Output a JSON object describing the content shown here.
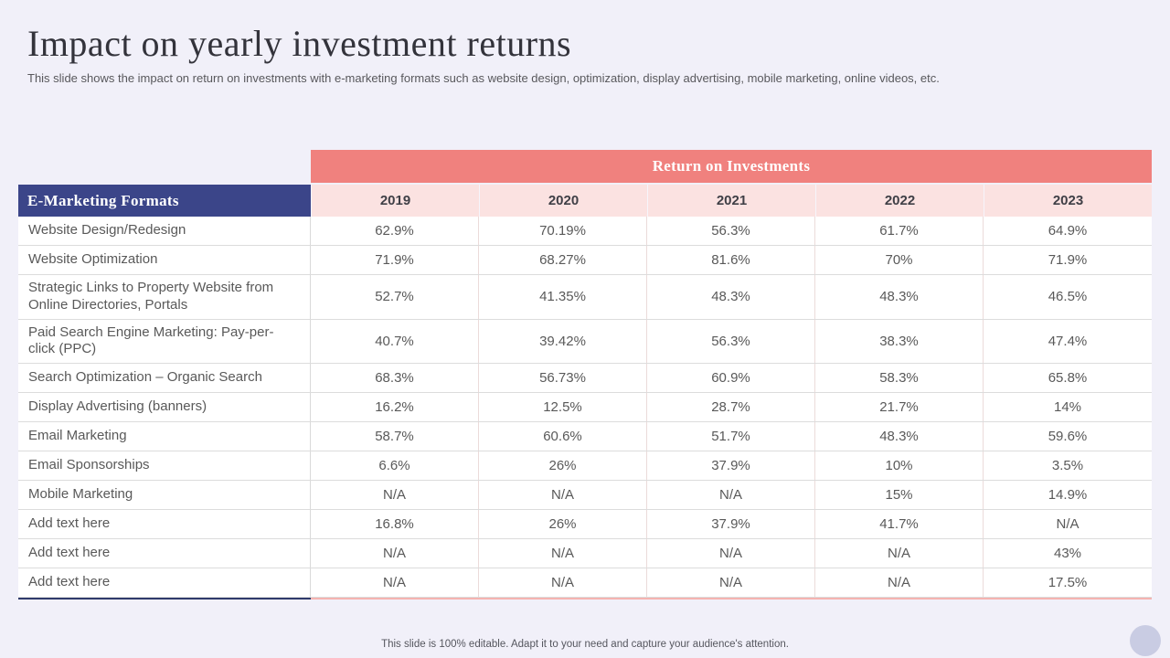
{
  "slide": {
    "title": "Impact on yearly investment returns",
    "subtitle": "This slide shows the impact on return on investments with e-marketing formats such as website design, optimization, display advertising, mobile marketing, online videos, etc.",
    "footer": "This slide is 100% editable. Adapt it to your need and capture your audience's attention."
  },
  "colors": {
    "background": "#F1F0F9",
    "accent_salmon": "#F0817E",
    "light_pink": "#FBE2E1",
    "navy": "#3B4589",
    "text_grey": "#595959",
    "border_grey": "#DCDCDC",
    "bottom_border_salmon": "#F5B3B0",
    "bottom_border_navy": "#2F3A6B",
    "corner_circle": "#C9CCE3"
  },
  "chart_data": {
    "type": "table",
    "title": "Return on Investments",
    "row_header": "E-Marketing Formats",
    "columns": [
      "2019",
      "2020",
      "2021",
      "2022",
      "2023"
    ],
    "rows": [
      {
        "label": "Website Design/Redesign",
        "values": [
          "62.9%",
          "70.19%",
          "56.3%",
          "61.7%",
          "64.9%"
        ]
      },
      {
        "label": "Website Optimization",
        "values": [
          "71.9%",
          "68.27%",
          "81.6%",
          "70%",
          "71.9%"
        ]
      },
      {
        "label": "Strategic Links to Property Website from Online Directories, Portals",
        "values": [
          "52.7%",
          "41.35%",
          "48.3%",
          "48.3%",
          "46.5%"
        ]
      },
      {
        "label": "Paid Search Engine Marketing: Pay-per-click (PPC)",
        "values": [
          "40.7%",
          "39.42%",
          "56.3%",
          "38.3%",
          "47.4%"
        ]
      },
      {
        "label": "Search Optimization – Organic Search",
        "values": [
          "68.3%",
          "56.73%",
          "60.9%",
          "58.3%",
          "65.8%"
        ]
      },
      {
        "label": "Display Advertising (banners)",
        "values": [
          "16.2%",
          "12.5%",
          "28.7%",
          "21.7%",
          "14%"
        ]
      },
      {
        "label": "Email Marketing",
        "values": [
          "58.7%",
          "60.6%",
          "51.7%",
          "48.3%",
          "59.6%"
        ]
      },
      {
        "label": "Email Sponsorships",
        "values": [
          "6.6%",
          "26%",
          "37.9%",
          "10%",
          "3.5%"
        ]
      },
      {
        "label": "Mobile Marketing",
        "values": [
          "N/A",
          "N/A",
          "N/A",
          "15%",
          "14.9%"
        ]
      },
      {
        "label": "Add text here",
        "values": [
          "16.8%",
          "26%",
          "37.9%",
          "41.7%",
          "N/A"
        ]
      },
      {
        "label": "Add text here",
        "values": [
          "N/A",
          "N/A",
          "N/A",
          "N/A",
          "43%"
        ]
      },
      {
        "label": "Add text here",
        "values": [
          "N/A",
          "N/A",
          "N/A",
          "N/A",
          "17.5%"
        ]
      }
    ]
  }
}
